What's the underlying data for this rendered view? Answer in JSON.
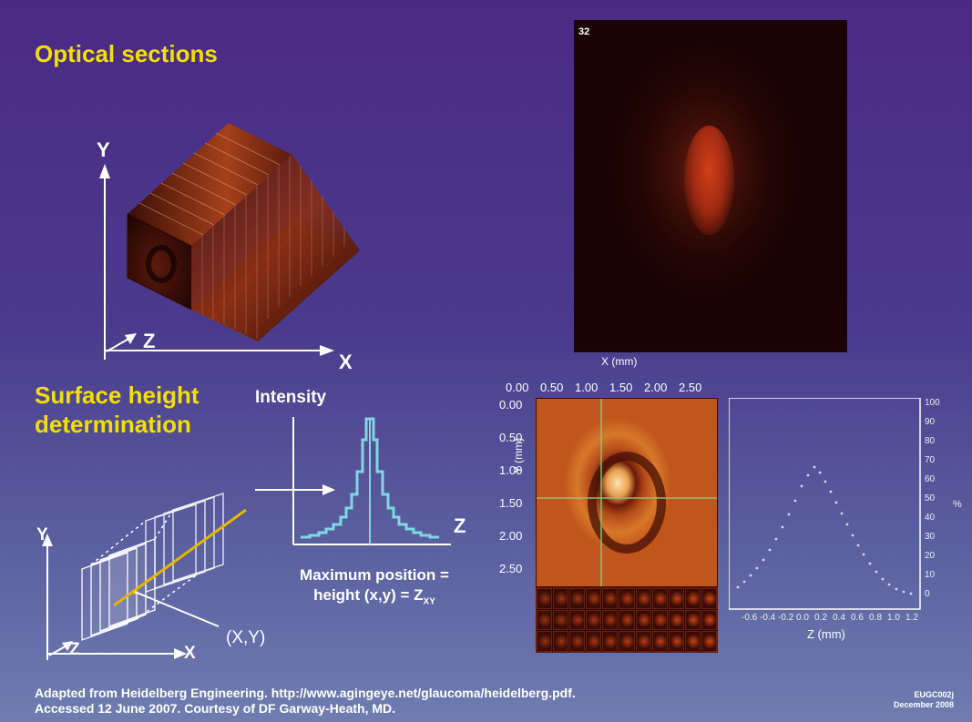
{
  "optical": {
    "title": "Optical sections",
    "axis_y": "Y",
    "axis_z": "Z",
    "axis_x": "X",
    "slice_index": "32",
    "x_axis_label": "X (mm)"
  },
  "surface": {
    "title_line1": "Surface height",
    "title_line2": "determination",
    "intensity_label": "Intensity",
    "profile_z_label": "Z",
    "max_line1": "Maximum position =",
    "max_line2": "height (x,y) = Z",
    "max_sub": "XY",
    "axis_y": "Y",
    "axis_z": "Z",
    "axis_x": "X",
    "point_label": "(X,Y)"
  },
  "fundus": {
    "top_ticks": [
      "0.00",
      "0.50",
      "1.00",
      "1.50",
      "2.00",
      "2.50"
    ],
    "left_ticks": [
      "0.00",
      "0.50",
      "1.00",
      "1.50",
      "2.00",
      "2.50"
    ],
    "y_axis_label": "Y (mm)"
  },
  "zplot": {
    "x_ticks": [
      "-0.6",
      "-0.4",
      "-0.2",
      "0.0",
      "0.2",
      "0.4",
      "0.6",
      "0.8",
      "1.0",
      "1.2"
    ],
    "x_label": "Z (mm)",
    "right_ticks": [
      "100",
      "90",
      "80",
      "70",
      "60",
      "50",
      "40",
      "30",
      "20",
      "10",
      "0"
    ],
    "right_label": "%"
  },
  "footer": {
    "line1": "Adapted from Heidelberg Engineering. http://www.agingeye.net/glaucoma/heidelberg.pdf.",
    "line2": "Accessed 12 June 2007. Courtesy of DF Garway-Heath, MD.",
    "code": "EUGC002j",
    "date": "December 2008"
  },
  "colors": {
    "title_yellow": "#f2e000",
    "profile_cyan": "#7fd8e0",
    "scan_line": "#e6b800"
  }
}
